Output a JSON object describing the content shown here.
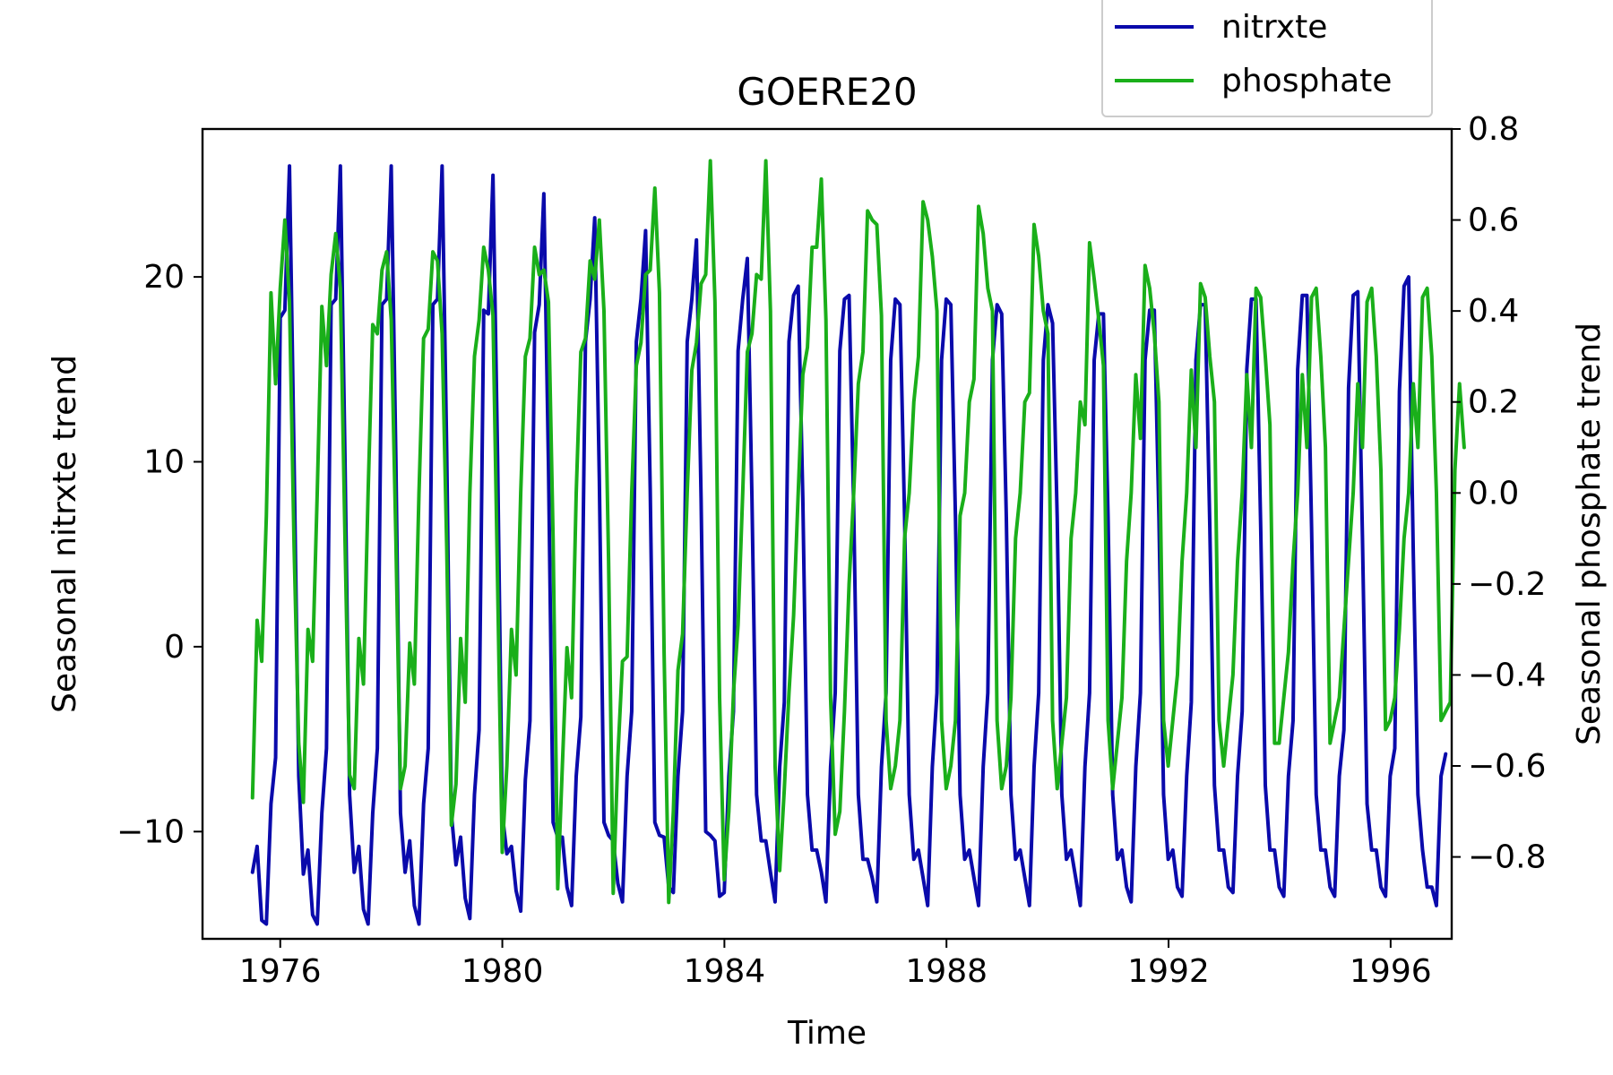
{
  "chart_data": {
    "type": "line",
    "title": "GOERE20",
    "xlabel": "Time",
    "ylabel_left": "Seasonal nitrxte trend",
    "ylabel_right": "Seasonal phosphate trend",
    "xlim": [
      1974.6,
      1997.1
    ],
    "ylim_left": [
      -15.8,
      28.0
    ],
    "ylim_right": [
      -0.98,
      0.8
    ],
    "x_ticks": [
      1976,
      1980,
      1984,
      1988,
      1992,
      1996
    ],
    "y_ticks_left": [
      -10,
      0,
      10,
      20
    ],
    "y_ticks_right": [
      -0.8,
      -0.6,
      -0.4,
      -0.2,
      0.0,
      0.2,
      0.4,
      0.6,
      0.8
    ],
    "x_tick_labels": [
      "1976",
      "1980",
      "1984",
      "1988",
      "1992",
      "1996"
    ],
    "y_tick_labels_left": [
      "−10",
      "0",
      "10",
      "20"
    ],
    "y_tick_labels_right": [
      "−0.8",
      "−0.6",
      "−0.4",
      "−0.2",
      "0.0",
      "0.2",
      "0.4",
      "0.6",
      "0.8"
    ],
    "grid": false,
    "legend_position": "top-right",
    "colors": {
      "nitrxte": "#0a0aab",
      "phosphate": "#1aaf1a"
    },
    "series": [
      {
        "name": "nitrxte",
        "axis": "left",
        "start_x": 1975.5,
        "step": 0.0833,
        "values": [
          -12.2,
          -10.8,
          -14.8,
          -15.0,
          -8.5,
          -6.0,
          17.8,
          18.2,
          26.0,
          10.0,
          -7.0,
          -12.3,
          -11.0,
          -14.5,
          -15.0,
          -9.0,
          -5.5,
          18.5,
          18.8,
          26.0,
          10.2,
          -8.0,
          -12.2,
          -10.8,
          -14.2,
          -15.0,
          -9.0,
          -5.5,
          18.5,
          18.8,
          26.0,
          10.2,
          -9.0,
          -12.2,
          -10.5,
          -14.0,
          -15.0,
          -8.5,
          -5.5,
          18.5,
          18.8,
          26.0,
          10.5,
          -9.0,
          -11.8,
          -10.3,
          -13.6,
          -14.7,
          -8.0,
          -4.5,
          18.2,
          18.0,
          25.5,
          10.2,
          -9.0,
          -11.2,
          -10.8,
          -13.2,
          -14.3,
          -7.2,
          -4.0,
          17.0,
          18.5,
          24.5,
          9.8,
          -9.5,
          -10.3,
          -10.3,
          -13.0,
          -14.0,
          -7.0,
          -3.8,
          16.5,
          18.8,
          23.2,
          9.0,
          -9.5,
          -10.2,
          -10.5,
          -12.8,
          -13.8,
          -7.0,
          -3.5,
          16.5,
          18.8,
          22.5,
          8.5,
          -9.5,
          -10.2,
          -10.3,
          -13.0,
          -13.3,
          -7.0,
          -3.5,
          16.5,
          18.8,
          22.0,
          8.0,
          -10.0,
          -10.2,
          -10.5,
          -13.5,
          -13.3,
          -7.0,
          -3.5,
          16.0,
          18.8,
          21.0,
          8.0,
          -8.0,
          -10.5,
          -10.5,
          -12.2,
          -13.8,
          -6.5,
          -3.0,
          16.5,
          19.0,
          19.5,
          8.0,
          -8.0,
          -11.0,
          -11.0,
          -12.2,
          -13.8,
          -6.5,
          -2.5,
          16.0,
          18.8,
          19.0,
          7.5,
          -8.0,
          -11.5,
          -11.5,
          -12.5,
          -13.8,
          -6.5,
          -2.5,
          15.5,
          18.8,
          18.5,
          7.0,
          -8.0,
          -11.5,
          -11.0,
          -12.5,
          -14.0,
          -6.5,
          -2.5,
          15.5,
          18.8,
          18.5,
          7.0,
          -8.0,
          -11.5,
          -11.0,
          -12.5,
          -14.0,
          -6.5,
          -2.5,
          15.5,
          18.5,
          18.0,
          7.0,
          -8.0,
          -11.5,
          -11.0,
          -12.5,
          -14.0,
          -6.5,
          -2.5,
          15.5,
          18.5,
          17.5,
          7.0,
          -8.0,
          -11.5,
          -11.0,
          -12.5,
          -14.0,
          -6.5,
          -2.5,
          15.5,
          18.0,
          18.0,
          7.0,
          -8.0,
          -11.5,
          -11.0,
          -13.0,
          -13.8,
          -6.5,
          -2.5,
          15.5,
          18.2,
          18.2,
          7.0,
          -8.0,
          -11.5,
          -11.0,
          -13.0,
          -13.5,
          -7.0,
          -3.0,
          15.5,
          18.5,
          18.5,
          6.5,
          -7.5,
          -11.0,
          -11.0,
          -13.0,
          -13.3,
          -7.0,
          -3.5,
          15.0,
          18.8,
          18.8,
          6.5,
          -7.5,
          -11.0,
          -11.0,
          -13.0,
          -13.5,
          -7.0,
          -4.0,
          15.0,
          19.0,
          19.0,
          6.5,
          -8.0,
          -11.0,
          -11.0,
          -13.0,
          -13.5,
          -7.0,
          -4.5,
          14.0,
          19.0,
          19.2,
          6.0,
          -8.5,
          -11.0,
          -11.0,
          -13.0,
          -13.5,
          -7.0,
          -5.5,
          13.8,
          19.5,
          20.0,
          5.0,
          -8.0,
          -11.0,
          -13.0,
          -13.0,
          -14.0,
          -7.0,
          -5.8
        ]
      },
      {
        "name": "phosphate",
        "axis": "left_mapped_right",
        "start_x": 1975.5,
        "step": 0.0833,
        "values": [
          -0.67,
          -0.28,
          -0.37,
          -0.05,
          0.44,
          0.24,
          0.45,
          0.6,
          0.42,
          -0.12,
          -0.55,
          -0.68,
          -0.3,
          -0.37,
          0.0,
          0.41,
          0.28,
          0.48,
          0.57,
          0.45,
          -0.1,
          -0.62,
          -0.65,
          -0.32,
          -0.42,
          0.0,
          0.37,
          0.35,
          0.49,
          0.53,
          0.38,
          -0.1,
          -0.65,
          -0.6,
          -0.33,
          -0.42,
          0.0,
          0.34,
          0.36,
          0.53,
          0.51,
          0.35,
          -0.12,
          -0.73,
          -0.64,
          -0.32,
          -0.46,
          0.0,
          0.3,
          0.38,
          0.54,
          0.49,
          0.39,
          -0.2,
          -0.79,
          -0.6,
          -0.3,
          -0.4,
          0.0,
          0.3,
          0.34,
          0.54,
          0.48,
          0.49,
          0.42,
          -0.1,
          -0.87,
          -0.6,
          -0.34,
          -0.45,
          0.0,
          0.31,
          0.34,
          0.51,
          0.47,
          0.6,
          0.4,
          -0.15,
          -0.88,
          -0.58,
          -0.37,
          -0.36,
          0.0,
          0.28,
          0.33,
          0.48,
          0.49,
          0.67,
          0.44,
          -0.35,
          -0.9,
          -0.7,
          -0.39,
          -0.31,
          0.0,
          0.27,
          0.33,
          0.46,
          0.48,
          0.73,
          0.42,
          -0.45,
          -0.85,
          -0.7,
          -0.44,
          -0.29,
          0.0,
          0.31,
          0.35,
          0.48,
          0.47,
          0.73,
          0.4,
          -0.6,
          -0.83,
          -0.65,
          -0.44,
          -0.27,
          0.0,
          0.26,
          0.32,
          0.54,
          0.54,
          0.69,
          0.38,
          -0.45,
          -0.75,
          -0.7,
          -0.48,
          -0.2,
          0.0,
          0.24,
          0.31,
          0.62,
          0.6,
          0.59,
          0.39,
          -0.5,
          -0.65,
          -0.6,
          -0.5,
          -0.1,
          0.0,
          0.2,
          0.3,
          0.64,
          0.6,
          0.52,
          0.4,
          -0.5,
          -0.65,
          -0.6,
          -0.5,
          -0.05,
          0.0,
          0.2,
          0.25,
          0.63,
          0.57,
          0.45,
          0.4,
          -0.5,
          -0.65,
          -0.6,
          -0.45,
          -0.1,
          0.0,
          0.2,
          0.22,
          0.59,
          0.52,
          0.4,
          0.35,
          -0.5,
          -0.65,
          -0.55,
          -0.45,
          -0.1,
          0.0,
          0.2,
          0.15,
          0.55,
          0.47,
          0.38,
          0.28,
          -0.5,
          -0.65,
          -0.55,
          -0.45,
          -0.15,
          0.0,
          0.26,
          0.12,
          0.5,
          0.45,
          0.35,
          0.2,
          -0.5,
          -0.6,
          -0.5,
          -0.4,
          -0.15,
          0.0,
          0.27,
          0.1,
          0.46,
          0.43,
          0.3,
          0.2,
          -0.5,
          -0.6,
          -0.5,
          -0.4,
          -0.15,
          0.0,
          0.26,
          0.1,
          0.45,
          0.43,
          0.3,
          0.15,
          -0.55,
          -0.55,
          -0.45,
          -0.35,
          -0.15,
          0.0,
          0.26,
          0.1,
          0.43,
          0.45,
          0.3,
          0.1,
          -0.55,
          -0.5,
          -0.45,
          -0.3,
          -0.15,
          0.0,
          0.24,
          0.1,
          0.42,
          0.45,
          0.3,
          0.05,
          -0.52,
          -0.5,
          -0.45,
          -0.3,
          -0.1,
          0.0,
          0.24,
          0.1,
          0.43,
          0.45,
          0.3,
          0.0,
          -0.5,
          -0.48,
          -0.46,
          0.05,
          0.24,
          0.1
        ]
      }
    ]
  }
}
